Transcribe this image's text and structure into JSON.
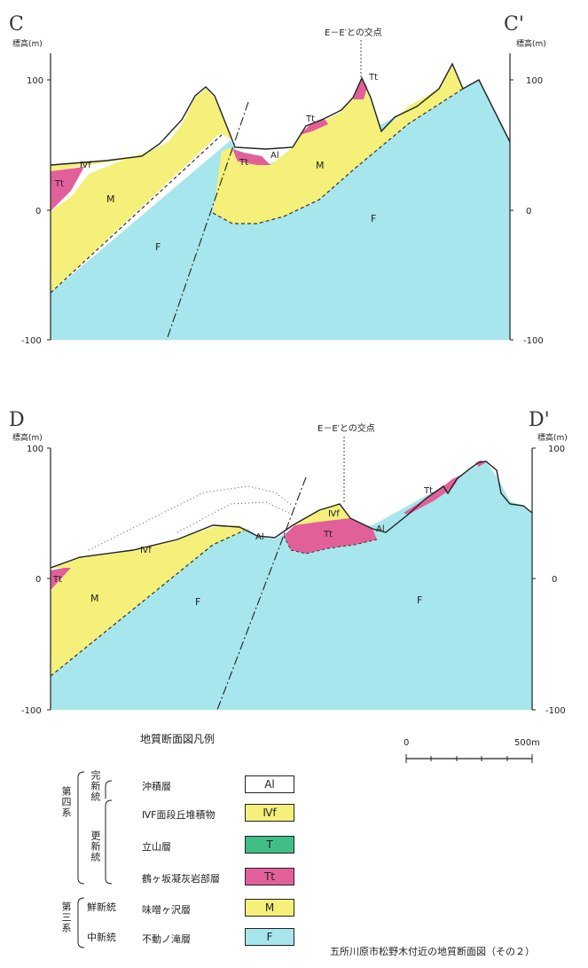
{
  "colors": {
    "F": "#a6e6ec",
    "M": "#f4f07a",
    "IVf": "#f4f07a",
    "Tt": "#e2609a",
    "T": "#3fbf86",
    "Al": "#ffffff",
    "line": "#222222"
  },
  "sectionC": {
    "left_label": "C",
    "right_label": "C'",
    "axis_title_left": "標高(m)",
    "axis_title_right": "標高(m)",
    "ticks": [
      "100",
      "0",
      "-100"
    ],
    "intersection": "E－E′との交点",
    "labels": {
      "ivf": "Ⅳf",
      "tt_left": "Tt",
      "m_left": "M",
      "f_left": "F",
      "tt_mid": "Tt",
      "al": "Al",
      "tt_ridge": "Tt",
      "m_mid": "M",
      "tt_peak": "Tt",
      "f_right": "F"
    }
  },
  "sectionD": {
    "left_label": "D",
    "right_label": "D'",
    "axis_title_left": "標高(m)",
    "axis_title_right": "標高(m)",
    "ticks": [
      "100",
      "0",
      "-100"
    ],
    "intersection": "E－E′との交点",
    "labels": {
      "ivf": "Ⅳf",
      "tt_left": "Tt",
      "m_left": "M",
      "f_left": "F",
      "al_left": "Al",
      "ivf_mid": "Ⅳf",
      "tt_mid": "Tt",
      "al_right": "Al",
      "tt_right": "Tt",
      "f_right": "F"
    }
  },
  "legend": {
    "title": "地質断面図凡例",
    "scale_zero": "0",
    "scale_end": "500m",
    "group_quaternary": "第四系",
    "group_tertiary": "第三系",
    "holocene": "完新統",
    "pleistocene": "更新統",
    "pliocene": "鮮新統",
    "miocene": "中新統",
    "rows": [
      {
        "name": "沖積層",
        "code": "Al"
      },
      {
        "name": "ⅣF面段丘堆積物",
        "code": "Ⅳf"
      },
      {
        "name": "立山層",
        "code": "T"
      },
      {
        "name": "鶴ヶ坂凝灰岩部層",
        "code": "Tt"
      },
      {
        "name": "味噌ヶ沢層",
        "code": "M"
      },
      {
        "name": "不動ノ滝層",
        "code": "F"
      }
    ]
  },
  "caption": "五所川原市松野木付近の地質断面図（その２）"
}
